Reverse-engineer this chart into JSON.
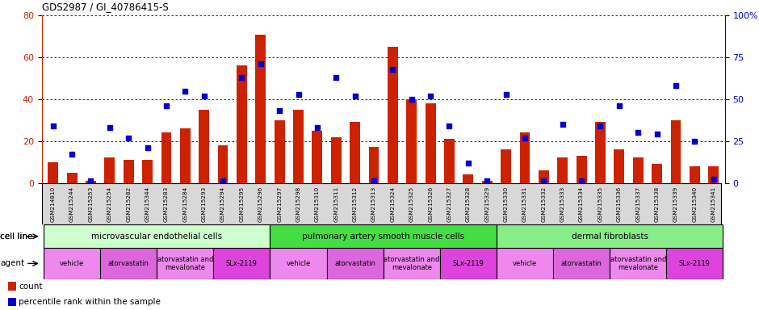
{
  "title": "GDS2987 / GI_40786415-S",
  "samples": [
    "GSM214810",
    "GSM215244",
    "GSM215253",
    "GSM215254",
    "GSM215282",
    "GSM215344",
    "GSM215283",
    "GSM215284",
    "GSM215293",
    "GSM215294",
    "GSM215295",
    "GSM215296",
    "GSM215297",
    "GSM215298",
    "GSM215310",
    "GSM215311",
    "GSM215312",
    "GSM215313",
    "GSM215324",
    "GSM215325",
    "GSM215326",
    "GSM215327",
    "GSM215328",
    "GSM215329",
    "GSM215330",
    "GSM215331",
    "GSM215332",
    "GSM215333",
    "GSM215334",
    "GSM215335",
    "GSM215336",
    "GSM215337",
    "GSM215338",
    "GSM215339",
    "GSM215340",
    "GSM215341"
  ],
  "counts": [
    10,
    5,
    1,
    12,
    11,
    11,
    24,
    26,
    35,
    18,
    56,
    71,
    30,
    35,
    25,
    22,
    29,
    17,
    65,
    40,
    38,
    21,
    4,
    1,
    16,
    24,
    6,
    12,
    13,
    29,
    16,
    12,
    9,
    30,
    8,
    8
  ],
  "percentiles": [
    34,
    17,
    1,
    33,
    27,
    21,
    46,
    55,
    52,
    1,
    63,
    71,
    43,
    53,
    33,
    63,
    52,
    1,
    68,
    50,
    52,
    34,
    12,
    1,
    53,
    27,
    1,
    35,
    1,
    34,
    46,
    30,
    29,
    58,
    25,
    2
  ],
  "cell_line_groups": [
    {
      "label": "microvascular endothelial cells",
      "start": 0,
      "end": 11,
      "color": "#ccffcc"
    },
    {
      "label": "pulmonary artery smooth muscle cells",
      "start": 12,
      "end": 23,
      "color": "#44dd44"
    },
    {
      "label": "dermal fibroblasts",
      "start": 24,
      "end": 35,
      "color": "#88ee88"
    }
  ],
  "agent_groups": [
    {
      "label": "vehicle",
      "start": 0,
      "end": 2,
      "color": "#ee88ee"
    },
    {
      "label": "atorvastatin",
      "start": 3,
      "end": 5,
      "color": "#dd66dd"
    },
    {
      "label": "atorvastatin and\nmevalonate",
      "start": 6,
      "end": 8,
      "color": "#ee88ee"
    },
    {
      "label": "SLx-2119",
      "start": 9,
      "end": 11,
      "color": "#dd44dd"
    },
    {
      "label": "vehicle",
      "start": 12,
      "end": 14,
      "color": "#ee88ee"
    },
    {
      "label": "atorvastatin",
      "start": 15,
      "end": 17,
      "color": "#dd66dd"
    },
    {
      "label": "atorvastatin and\nmevalonate",
      "start": 18,
      "end": 20,
      "color": "#ee88ee"
    },
    {
      "label": "SLx-2119",
      "start": 21,
      "end": 23,
      "color": "#dd44dd"
    },
    {
      "label": "vehicle",
      "start": 24,
      "end": 26,
      "color": "#ee88ee"
    },
    {
      "label": "atorvastatin",
      "start": 27,
      "end": 29,
      "color": "#dd66dd"
    },
    {
      "label": "atorvastatin and\nmevalonate",
      "start": 30,
      "end": 32,
      "color": "#ee88ee"
    },
    {
      "label": "SLx-2119",
      "start": 33,
      "end": 35,
      "color": "#dd44dd"
    }
  ],
  "bar_color": "#cc2200",
  "dot_color": "#0000cc",
  "ylim_left": [
    0,
    80
  ],
  "ylim_right": [
    0,
    100
  ],
  "yticks_left": [
    0,
    20,
    40,
    60,
    80
  ],
  "yticks_right": [
    0,
    25,
    50,
    75,
    100
  ],
  "ytick_right_labels": [
    "0",
    "25",
    "50",
    "75",
    "100%"
  ],
  "bar_width": 0.55,
  "xticklabel_bg": "#d8d8d8",
  "plot_bg": "#ffffff"
}
